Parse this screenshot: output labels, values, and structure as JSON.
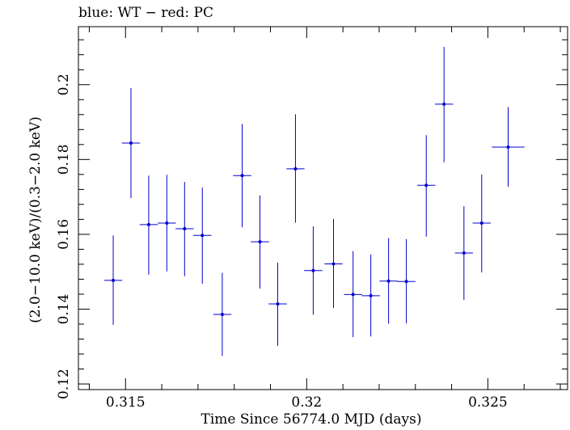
{
  "chart_data": {
    "type": "scatter",
    "title": "blue: WT − red: PC",
    "xlabel": "Time Since 56774.0 MJD (days)",
    "ylabel": "(2.0−10.0 keV)/(0.3−2.0 keV)",
    "xlim": [
      0.3137,
      0.3272
    ],
    "ylim": [
      0.1185,
      0.2155
    ],
    "x_ticks": [
      0.315,
      0.32,
      0.325
    ],
    "x_tick_labels": [
      "0.315",
      "0.32",
      "0.325"
    ],
    "y_ticks": [
      0.12,
      0.14,
      0.16,
      0.18,
      0.2
    ],
    "y_tick_labels": [
      "0.12",
      "0.14",
      "0.16",
      "0.18",
      "0.2"
    ],
    "grid": false,
    "color": "#0000cc",
    "series": [
      {
        "points": [
          {
            "x": 0.31466,
            "xerr": 0.00025,
            "y": 0.1477,
            "ylo": 0.1358,
            "yhi": 0.1597
          },
          {
            "x": 0.31515,
            "xerr": 0.00025,
            "y": 0.1844,
            "ylo": 0.1697,
            "yhi": 0.1991
          },
          {
            "x": 0.31564,
            "xerr": 0.00025,
            "y": 0.1626,
            "ylo": 0.1492,
            "yhi": 0.1757
          },
          {
            "x": 0.31614,
            "xerr": 0.00025,
            "y": 0.163,
            "ylo": 0.1501,
            "yhi": 0.1759
          },
          {
            "x": 0.31663,
            "xerr": 0.00025,
            "y": 0.1615,
            "ylo": 0.1488,
            "yhi": 0.174
          },
          {
            "x": 0.31712,
            "xerr": 0.00025,
            "y": 0.1597,
            "ylo": 0.1468,
            "yhi": 0.1725
          },
          {
            "x": 0.31767,
            "xerr": 0.00025,
            "y": 0.1386,
            "ylo": 0.1275,
            "yhi": 0.1497
          },
          {
            "x": 0.31822,
            "xerr": 0.00025,
            "y": 0.1757,
            "ylo": 0.1619,
            "yhi": 0.1895
          },
          {
            "x": 0.31871,
            "xerr": 0.00025,
            "y": 0.158,
            "ylo": 0.1455,
            "yhi": 0.1704
          },
          {
            "x": 0.3192,
            "xerr": 0.00025,
            "y": 0.1414,
            "ylo": 0.1302,
            "yhi": 0.1524
          },
          {
            "x": 0.31969,
            "xerr": 0.00025,
            "y": 0.1775,
            "ylo": 0.1631,
            "yhi": 0.1921
          },
          {
            "x": 0.32018,
            "xerr": 0.00025,
            "y": 0.1503,
            "ylo": 0.1385,
            "yhi": 0.1621
          },
          {
            "x": 0.32074,
            "xerr": 0.00025,
            "y": 0.1521,
            "ylo": 0.1403,
            "yhi": 0.1641
          },
          {
            "x": 0.32128,
            "xerr": 0.00025,
            "y": 0.1439,
            "ylo": 0.1325,
            "yhi": 0.1555
          },
          {
            "x": 0.32177,
            "xerr": 0.00025,
            "y": 0.1436,
            "ylo": 0.1327,
            "yhi": 0.1546
          },
          {
            "x": 0.32226,
            "xerr": 0.00025,
            "y": 0.1475,
            "ylo": 0.1361,
            "yhi": 0.159
          },
          {
            "x": 0.32275,
            "xerr": 0.00025,
            "y": 0.1474,
            "ylo": 0.1362,
            "yhi": 0.1587
          },
          {
            "x": 0.3233,
            "xerr": 0.00025,
            "y": 0.1731,
            "ylo": 0.1594,
            "yhi": 0.1865
          },
          {
            "x": 0.32379,
            "xerr": 0.00025,
            "y": 0.1948,
            "ylo": 0.1793,
            "yhi": 0.2101
          },
          {
            "x": 0.32434,
            "xerr": 0.00025,
            "y": 0.155,
            "ylo": 0.1425,
            "yhi": 0.1675
          },
          {
            "x": 0.32483,
            "xerr": 0.00025,
            "y": 0.163,
            "ylo": 0.1498,
            "yhi": 0.176
          },
          {
            "x": 0.32556,
            "xerr": 0.00045,
            "y": 0.1833,
            "ylo": 0.1727,
            "yhi": 0.194
          }
        ]
      }
    ]
  }
}
